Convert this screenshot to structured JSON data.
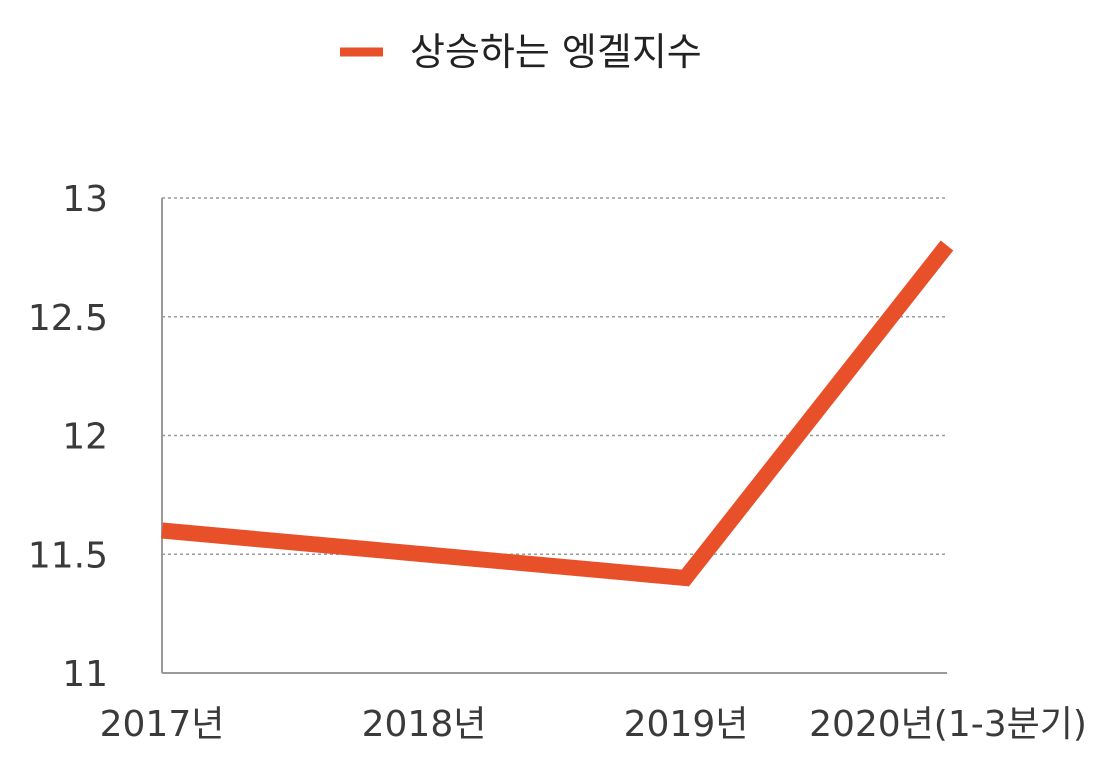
{
  "chart_data": {
    "type": "line",
    "categories": [
      "2017년",
      "2018년",
      "2019년",
      "2020년(1-3분기)"
    ],
    "series": [
      {
        "name": "상승하는 엥겔지수",
        "values": [
          11.6,
          11.5,
          11.4,
          12.8
        ],
        "color": "#e8502a"
      }
    ],
    "ylim": [
      11,
      13
    ],
    "yticks": [
      "11",
      "11.5",
      "12",
      "12.5",
      "13"
    ],
    "grid": true,
    "legend_position": "top-center"
  }
}
